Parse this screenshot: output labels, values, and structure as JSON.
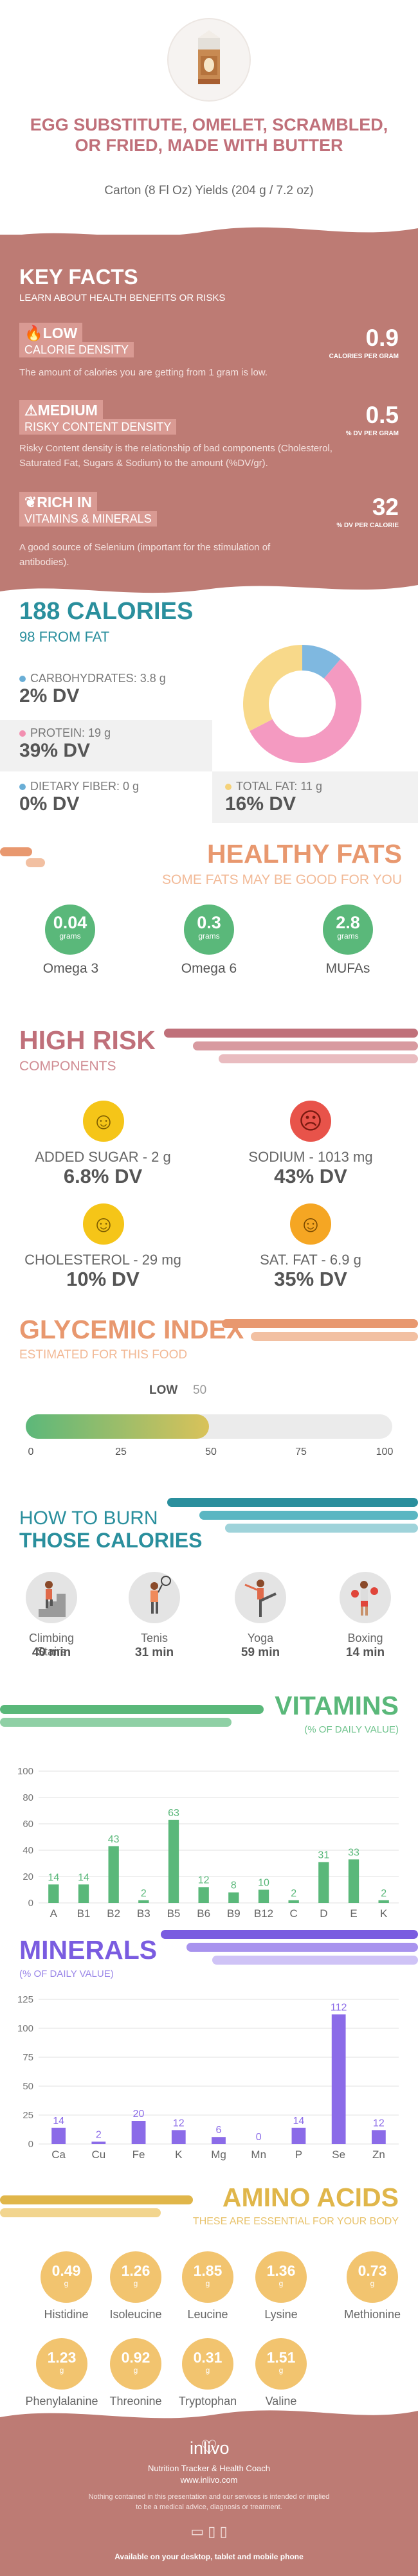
{
  "header": {
    "title": "EGG SUBSTITUTE, OMELET, SCRAMBLED, OR FRIED, MADE WITH BUTTER",
    "subtitle": "Carton (8 Fl Oz) Yields (204 g / 7.2 oz)"
  },
  "key_facts": {
    "title": "KEY FACTS",
    "subtitle": "LEARN ABOUT HEALTH BENEFITS OR RISKS",
    "items": [
      {
        "level": "LOW",
        "name": "CALORIE DENSITY",
        "desc": "The amount of calories you are getting from 1 gram is low.",
        "value": "0.9",
        "unit": "CALORIES PER GRAM"
      },
      {
        "level": "MEDIUM",
        "name": "RISKY CONTENT DENSITY",
        "desc": "Risky Content density is the relationship of bad components (Cholesterol, Saturated Fat, Sugars & Sodium) to the amount (%DV/gr).",
        "value": "0.5",
        "unit": "% DV PER GRAM"
      },
      {
        "level": "RICH IN",
        "name": "VITAMINS & MINERALS",
        "desc": "A good source of Selenium (important for the stimulation of antibodies).",
        "value": "32",
        "unit": "% DV PER CALORIE"
      }
    ]
  },
  "calories": {
    "title": "188 CALORIES",
    "from_fat": "98 FROM FAT",
    "nutrients": [
      {
        "label": "CARBOHYDRATES: 3.8 g",
        "dv": "2% DV",
        "color": "#6aaed6"
      },
      {
        "label": "PROTEIN: 19 g",
        "dv": "39% DV",
        "color": "#f28fb0"
      },
      {
        "label": "DIETARY FIBER: 0 g",
        "dv": "0% DV",
        "color": "#6aaed6"
      },
      {
        "label": "TOTAL FAT: 11 g",
        "dv": "16% DV",
        "color": "#f5d27a"
      }
    ],
    "donut": [
      {
        "name": "carbohydrates",
        "value": 3.8,
        "color": "#7fb8e0"
      },
      {
        "name": "protein",
        "value": 19,
        "color": "#f49ac1"
      },
      {
        "name": "fat",
        "value": 11,
        "color": "#f8d98a"
      }
    ]
  },
  "healthy_fats": {
    "title": "HEALTHY FATS",
    "subtitle": "SOME FATS MAY BE GOOD FOR YOU",
    "items": [
      {
        "value": "0.04",
        "unit": "grams",
        "name": "Omega 3"
      },
      {
        "value": "0.3",
        "unit": "grams",
        "name": "Omega 6"
      },
      {
        "value": "2.8",
        "unit": "grams",
        "name": "MUFAs"
      }
    ]
  },
  "high_risk": {
    "title": "HIGH RISK",
    "subtitle": "COMPONENTS",
    "items": [
      {
        "label": "ADDED SUGAR - 2 g",
        "dv": "6.8% DV",
        "face": "☺",
        "color": "#f5c518"
      },
      {
        "label": "SODIUM - 1013 mg",
        "dv": "43% DV",
        "face": "☹",
        "color": "#e8534a"
      },
      {
        "label": "CHOLESTEROL - 29 mg",
        "dv": "10% DV",
        "face": "☺",
        "color": "#f5c518"
      },
      {
        "label": "SAT. FAT - 6.9 g",
        "dv": "35% DV",
        "face": "☺",
        "color": "#f5a623"
      }
    ]
  },
  "glycemic": {
    "title": "GLYCEMIC INDEX",
    "subtitle": "ESTIMATED FOR THIS FOOD",
    "level": "LOW",
    "value": 50,
    "value_text": "50",
    "ticks": [
      "0",
      "25",
      "50",
      "75",
      "100"
    ]
  },
  "burn": {
    "title1": "HOW TO BURN",
    "title2": "THOSE CALORIES",
    "items": [
      {
        "name": "Climbing Stairs",
        "minutes": "40 min",
        "icon": "stairs-icon"
      },
      {
        "name": "Tenis",
        "minutes": "31 min",
        "icon": "tennis-icon"
      },
      {
        "name": "Yoga",
        "minutes": "59 min",
        "icon": "yoga-icon"
      },
      {
        "name": "Boxing",
        "minutes": "14 min",
        "icon": "boxing-icon"
      }
    ]
  },
  "vitamins": {
    "title": "VITAMINS",
    "subtitle": "(% OF DAILY VALUE)"
  },
  "minerals": {
    "title": "MINERALS",
    "subtitle": "(% OF DAILY VALUE)"
  },
  "chart_data": [
    {
      "type": "bar",
      "title": "VITAMINS",
      "categories": [
        "A",
        "B1",
        "B2",
        "B3",
        "B5",
        "B6",
        "B9",
        "B12",
        "C",
        "D",
        "E",
        "K"
      ],
      "values": [
        14,
        14,
        43,
        2,
        63,
        12,
        8,
        10,
        2,
        31,
        33,
        2
      ],
      "ylim": [
        0,
        100
      ],
      "yticks": [
        "0",
        "20",
        "40",
        "60",
        "80",
        "100"
      ],
      "color": "#5ab87a"
    },
    {
      "type": "bar",
      "title": "MINERALS",
      "categories": [
        "Ca",
        "Cu",
        "Fe",
        "K",
        "Mg",
        "Mn",
        "P",
        "Se",
        "Zn"
      ],
      "values": [
        14,
        2,
        20,
        12,
        6,
        0,
        14,
        112,
        12
      ],
      "ylim": [
        0,
        125
      ],
      "yticks": [
        "0",
        "25",
        "50",
        "75",
        "100",
        "125"
      ],
      "color": "#8b6be8"
    }
  ],
  "amino": {
    "title": "AMINO ACIDS",
    "subtitle": "THESE ARE ESSENTIAL FOR YOUR BODY",
    "items": [
      {
        "value": "0.49",
        "unit": "g",
        "name": "Histidine"
      },
      {
        "value": "1.26",
        "unit": "g",
        "name": "Isoleucine"
      },
      {
        "value": "1.85",
        "unit": "g",
        "name": "Leucine"
      },
      {
        "value": "1.36",
        "unit": "g",
        "name": "Lysine"
      },
      {
        "value": "0.73",
        "unit": "g",
        "name": "Methionine"
      },
      {
        "value": "1.23",
        "unit": "g",
        "name": "Phenylalanine"
      },
      {
        "value": "0.92",
        "unit": "g",
        "name": "Threonine"
      },
      {
        "value": "0.31",
        "unit": "g",
        "name": "Tryptophan"
      },
      {
        "value": "1.51",
        "unit": "g",
        "name": "Valine"
      }
    ]
  },
  "footer": {
    "brand": "inlivo",
    "tagline": "Nutrition Tracker & Health Coach",
    "url": "www.inlivo.com",
    "disclaimer1": "Nothing contained in this presentation and our services is intended or implied",
    "disclaimer2": "to be a medical advice, diagnosis or treatment.",
    "available": "Available on your desktop, tablet and mobile phone"
  }
}
